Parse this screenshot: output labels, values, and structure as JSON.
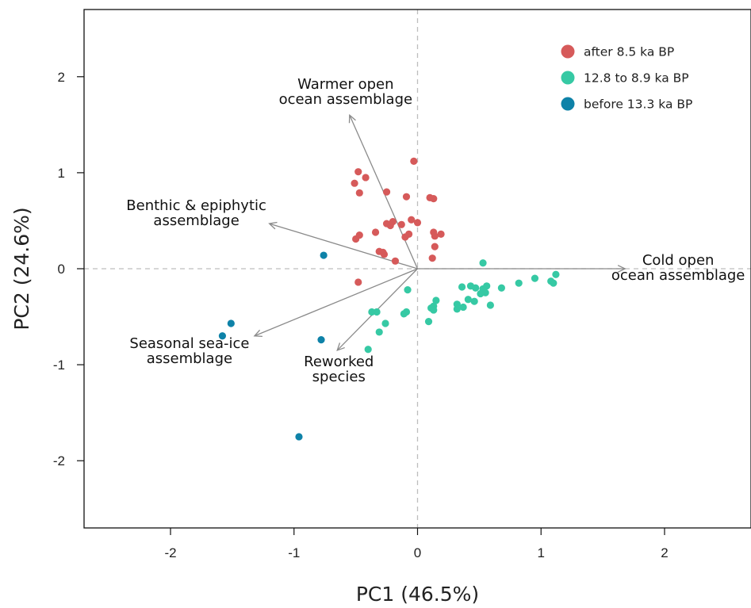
{
  "chart_data": {
    "type": "scatter",
    "xlabel": "PC1 (46.5%)",
    "ylabel": "PC2 (24.6%)",
    "xlim": [
      -2.7,
      2.7
    ],
    "ylim": [
      -2.7,
      2.7
    ],
    "x_ticks": [
      -2,
      -1,
      0,
      1,
      2
    ],
    "y_ticks": [
      -2,
      -1,
      0,
      1,
      2
    ],
    "legend_placement": "top-right",
    "series": [
      {
        "name": "after 8.5 ka BP",
        "color": "#d65a5a",
        "points": [
          [
            -0.48,
            1.01
          ],
          [
            -0.42,
            0.95
          ],
          [
            -0.51,
            0.89
          ],
          [
            -0.47,
            0.79
          ],
          [
            -0.25,
            0.8
          ],
          [
            -0.03,
            1.12
          ],
          [
            -0.09,
            0.75
          ],
          [
            0.1,
            0.74
          ],
          [
            0.13,
            0.73
          ],
          [
            -0.2,
            0.49
          ],
          [
            -0.25,
            0.47
          ],
          [
            -0.22,
            0.45
          ],
          [
            -0.13,
            0.46
          ],
          [
            -0.05,
            0.51
          ],
          [
            0.0,
            0.48
          ],
          [
            -0.34,
            0.38
          ],
          [
            -0.47,
            0.35
          ],
          [
            -0.5,
            0.31
          ],
          [
            -0.1,
            0.33
          ],
          [
            -0.07,
            0.36
          ],
          [
            0.13,
            0.38
          ],
          [
            0.19,
            0.36
          ],
          [
            0.14,
            0.34
          ],
          [
            0.14,
            0.23
          ],
          [
            -0.31,
            0.18
          ],
          [
            -0.28,
            0.17
          ],
          [
            -0.27,
            0.15
          ],
          [
            -0.18,
            0.08
          ],
          [
            0.12,
            0.11
          ],
          [
            -0.48,
            -0.14
          ]
        ]
      },
      {
        "name": "12.8 to 8.9 ka BP",
        "color": "#36c9a4",
        "points": [
          [
            0.53,
            0.06
          ],
          [
            1.12,
            -0.06
          ],
          [
            0.95,
            -0.1
          ],
          [
            1.08,
            -0.13
          ],
          [
            1.1,
            -0.15
          ],
          [
            0.82,
            -0.15
          ],
          [
            0.68,
            -0.2
          ],
          [
            0.56,
            -0.18
          ],
          [
            0.53,
            -0.21
          ],
          [
            0.43,
            -0.18
          ],
          [
            0.36,
            -0.19
          ],
          [
            0.47,
            -0.2
          ],
          [
            0.55,
            -0.25
          ],
          [
            0.51,
            -0.26
          ],
          [
            0.41,
            -0.32
          ],
          [
            0.46,
            -0.34
          ],
          [
            0.59,
            -0.38
          ],
          [
            0.32,
            -0.37
          ],
          [
            0.37,
            -0.4
          ],
          [
            0.32,
            -0.42
          ],
          [
            0.13,
            -0.39
          ],
          [
            0.15,
            -0.33
          ],
          [
            0.11,
            -0.41
          ],
          [
            0.13,
            -0.43
          ],
          [
            0.09,
            -0.55
          ],
          [
            -0.08,
            -0.22
          ],
          [
            -0.09,
            -0.45
          ],
          [
            -0.11,
            -0.47
          ],
          [
            -0.37,
            -0.45
          ],
          [
            -0.33,
            -0.45
          ],
          [
            -0.26,
            -0.57
          ],
          [
            -0.31,
            -0.66
          ],
          [
            -0.4,
            -0.84
          ]
        ]
      },
      {
        "name": "before 13.3 ka BP",
        "color": "#0e82a8",
        "points": [
          [
            -0.76,
            0.14
          ],
          [
            -1.51,
            -0.57
          ],
          [
            -1.58,
            -0.7
          ],
          [
            -0.78,
            -0.74
          ],
          [
            -0.96,
            -1.75
          ]
        ]
      }
    ],
    "loadings": [
      {
        "label": [
          "Warmer open",
          "ocean assemblage"
        ],
        "x": -0.55,
        "y": 1.6
      },
      {
        "label": [
          "Benthic & epiphytic",
          "assemblage"
        ],
        "x": -1.2,
        "y": 0.47
      },
      {
        "label": [
          "Cold open",
          "ocean assemblage"
        ],
        "x": 1.68,
        "y": 0.0
      },
      {
        "label": [
          "Seasonal sea-ice",
          "assemblage"
        ],
        "x": -1.32,
        "y": -0.7
      },
      {
        "label": [
          "Reworked",
          "species"
        ],
        "x": -0.65,
        "y": -0.85
      }
    ],
    "reference_lines": {
      "x0": true,
      "y0": true,
      "style": "dashed"
    },
    "grid": false
  }
}
